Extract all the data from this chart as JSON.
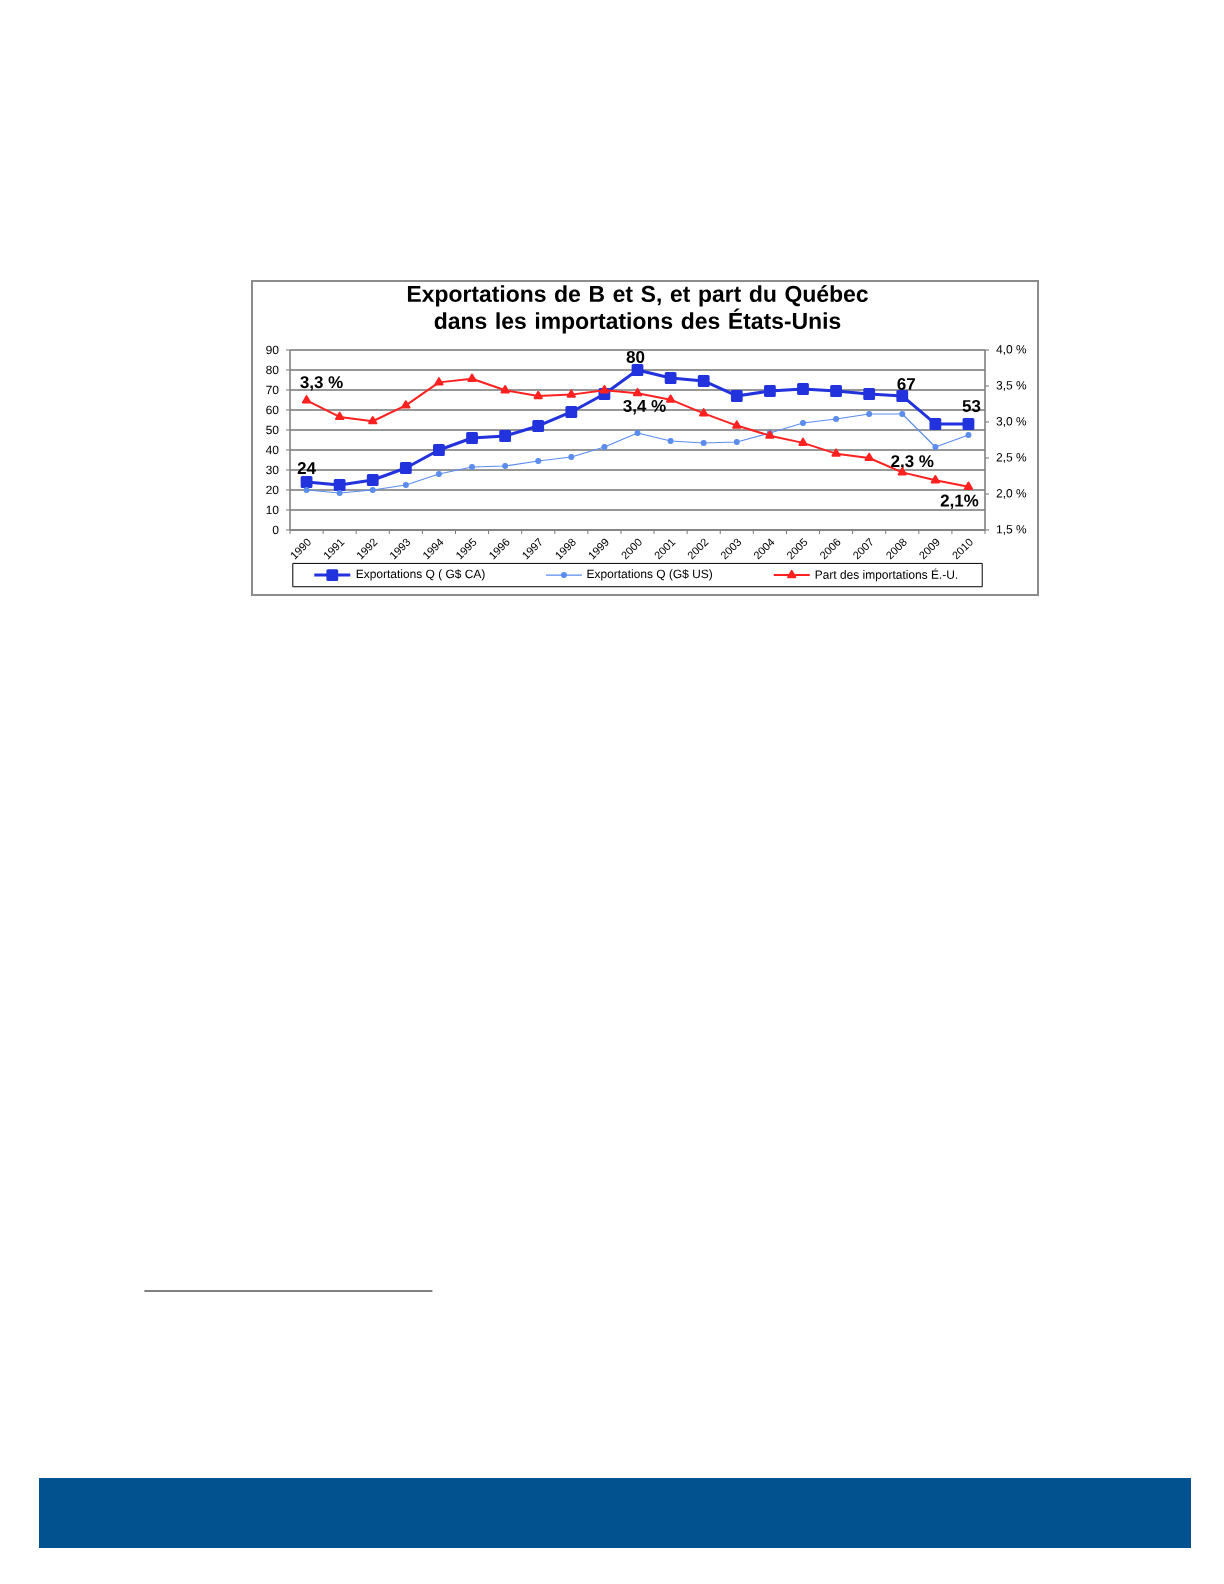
{
  "chart_data": {
    "type": "line",
    "title": "Exportations de B et S, et part du Québec dans les importations des États-Unis",
    "categories": [
      "1990",
      "1991",
      "1992",
      "1993",
      "1994",
      "1995",
      "1996",
      "1997",
      "1998",
      "1999",
      "2000",
      "2001",
      "2002",
      "2003",
      "2004",
      "2005",
      "2006",
      "2007",
      "2008",
      "2009",
      "2010"
    ],
    "series": [
      {
        "name": "Exportations Q ( G$ CA)",
        "color": "#2233dd",
        "marker": "square",
        "values": [
          24,
          22.5,
          25,
          31,
          40,
          46,
          47,
          52,
          59,
          68,
          80,
          76,
          74.5,
          67,
          69.5,
          70.5,
          69.5,
          68,
          67,
          53,
          53
        ],
        "value_labels": [
          "24",
          null,
          null,
          null,
          null,
          null,
          null,
          null,
          null,
          null,
          "80",
          null,
          null,
          null,
          null,
          null,
          null,
          null,
          "67",
          null,
          "53"
        ]
      },
      {
        "name": "Exportations Q (G$ US)",
        "color": "#5b8def",
        "marker": "circle",
        "values": [
          20,
          18.5,
          20,
          22.5,
          28,
          31.5,
          32,
          34.5,
          36.5,
          41.5,
          48.5,
          44.5,
          43.5,
          44,
          48.5,
          53.5,
          55.5,
          58,
          58,
          41.5,
          47.5
        ]
      },
      {
        "name": "Part des importations É.-U.",
        "color": "#ff2020",
        "marker": "triangle",
        "axis": "y2",
        "values": [
          3.3,
          3.07,
          3.01,
          3.23,
          3.55,
          3.6,
          3.44,
          3.36,
          3.38,
          3.44,
          3.4,
          3.31,
          3.12,
          2.95,
          2.81,
          2.71,
          2.56,
          2.5,
          2.3,
          2.19,
          2.1
        ],
        "value_labels": [
          "3,3 %",
          null,
          null,
          null,
          null,
          null,
          null,
          null,
          null,
          null,
          "3,4 %",
          null,
          null,
          null,
          null,
          null,
          null,
          null,
          "2,3 %",
          null,
          "2,1%"
        ]
      }
    ],
    "ylim": [
      0,
      90
    ],
    "yticks": [
      0,
      10,
      20,
      30,
      40,
      50,
      60,
      70,
      80,
      90
    ],
    "y2lim": [
      1.5,
      4.0
    ],
    "y2ticks": [
      {
        "value": 1.5,
        "label": "1,5 %"
      },
      {
        "value": 2.0,
        "label": "2,0 %"
      },
      {
        "value": 2.5,
        "label": "2,5 %"
      },
      {
        "value": 3.0,
        "label": "3,0 %"
      },
      {
        "value": 3.5,
        "label": "3,5 %"
      },
      {
        "value": 4.0,
        "label": "4,0 %"
      }
    ],
    "grid": "y",
    "legend": "bottom"
  }
}
